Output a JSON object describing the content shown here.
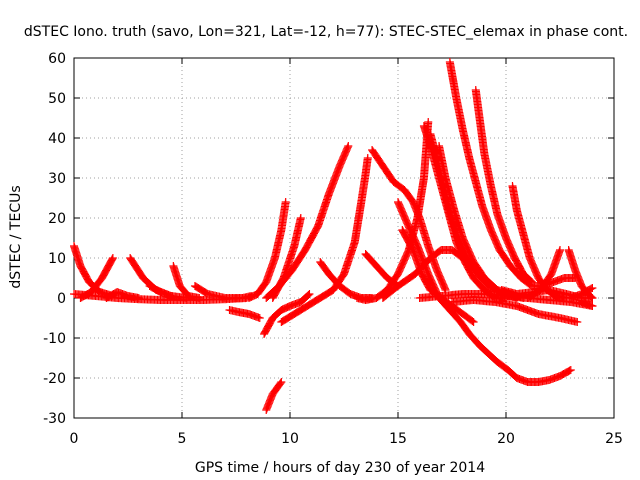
{
  "chart_data": {
    "type": "scatter",
    "title": "dSTEC Iono. truth (savo, Lon=321, Lat=-12, h=77): STEC-STEC_elemax in phase cont.",
    "xlabel": "GPS time / hours of day 230 of year 2014",
    "ylabel": "dSTEC  / TECUs",
    "xlim": [
      0,
      25
    ],
    "ylim": [
      -30,
      60
    ],
    "xticks": [
      "0",
      "5",
      "10",
      "15",
      "20",
      "25"
    ],
    "yticks": [
      "-30",
      "-20",
      "-10",
      "0",
      "10",
      "20",
      "30",
      "40",
      "50",
      "60"
    ],
    "grid": true,
    "marker": "+",
    "color": "#ff0000",
    "series": [
      {
        "points": [
          [
            0.0,
            13
          ],
          [
            0.3,
            8
          ],
          [
            0.7,
            4
          ],
          [
            1.2,
            1.5
          ],
          [
            1.8,
            0.5
          ]
        ]
      },
      {
        "points": [
          [
            0.0,
            1
          ],
          [
            1.0,
            0.5
          ],
          [
            2.0,
            0
          ],
          [
            3.0,
            -0.3
          ],
          [
            4.0,
            -0.5
          ],
          [
            5.0,
            -0.5
          ],
          [
            6.0,
            -0.5
          ],
          [
            7.0,
            -0.3
          ],
          [
            8.0,
            0
          ]
        ]
      },
      {
        "points": [
          [
            0.3,
            0
          ],
          [
            0.8,
            1.5
          ],
          [
            1.3,
            5
          ],
          [
            1.8,
            10
          ]
        ]
      },
      {
        "points": [
          [
            1.5,
            0
          ],
          [
            2.0,
            1.5
          ],
          [
            2.5,
            0.5
          ],
          [
            3.0,
            0
          ]
        ]
      },
      {
        "points": [
          [
            2.6,
            10
          ],
          [
            3.2,
            5
          ],
          [
            3.8,
            2
          ],
          [
            4.5,
            0.5
          ],
          [
            5.2,
            0
          ]
        ]
      },
      {
        "points": [
          [
            3.5,
            3
          ],
          [
            4.0,
            1.5
          ],
          [
            4.5,
            0.5
          ]
        ]
      },
      {
        "points": [
          [
            4.6,
            8
          ],
          [
            4.9,
            3
          ],
          [
            5.3,
            0.5
          ],
          [
            5.8,
            0
          ]
        ]
      },
      {
        "points": [
          [
            5.6,
            3
          ],
          [
            6.2,
            1
          ],
          [
            7.0,
            0
          ],
          [
            7.8,
            0
          ],
          [
            8.2,
            0.5
          ]
        ]
      },
      {
        "points": [
          [
            7.2,
            -3
          ],
          [
            7.6,
            -3.5
          ],
          [
            8.1,
            -4
          ],
          [
            8.6,
            -5
          ]
        ]
      },
      {
        "points": [
          [
            8.1,
            0
          ],
          [
            8.5,
            1
          ],
          [
            8.9,
            4
          ],
          [
            9.3,
            10
          ],
          [
            9.6,
            17
          ],
          [
            9.8,
            24
          ]
        ]
      },
      {
        "points": [
          [
            8.8,
            -9
          ],
          [
            9.2,
            -5
          ],
          [
            9.6,
            -3
          ],
          [
            10.0,
            -2
          ],
          [
            10.5,
            -1
          ],
          [
            10.9,
            1
          ]
        ]
      },
      {
        "points": [
          [
            9.2,
            0
          ],
          [
            9.7,
            5
          ],
          [
            10.2,
            13
          ],
          [
            10.5,
            20
          ]
        ]
      },
      {
        "points": [
          [
            9.6,
            -6
          ],
          [
            10.2,
            -4
          ],
          [
            10.8,
            -2
          ],
          [
            11.4,
            0
          ],
          [
            12.0,
            2
          ],
          [
            12.5,
            6
          ],
          [
            13.0,
            14
          ],
          [
            13.3,
            24
          ],
          [
            13.5,
            31
          ],
          [
            13.6,
            35
          ]
        ]
      },
      {
        "points": [
          [
            8.9,
            0
          ],
          [
            9.5,
            3
          ],
          [
            10.1,
            7
          ],
          [
            10.7,
            12
          ],
          [
            11.3,
            18
          ],
          [
            11.8,
            26
          ],
          [
            12.3,
            33
          ],
          [
            12.7,
            38
          ]
        ]
      },
      {
        "points": [
          [
            8.9,
            -28
          ],
          [
            9.2,
            -24
          ],
          [
            9.6,
            -21
          ]
        ]
      },
      {
        "points": [
          [
            11.4,
            9
          ],
          [
            11.8,
            6
          ],
          [
            12.3,
            3
          ],
          [
            12.8,
            1
          ],
          [
            13.3,
            0
          ],
          [
            13.8,
            0
          ]
        ]
      },
      {
        "points": [
          [
            13.1,
            0
          ],
          [
            13.5,
            -0.5
          ],
          [
            14.0,
            0
          ],
          [
            14.5,
            2
          ],
          [
            15.0,
            6
          ],
          [
            15.5,
            12
          ],
          [
            15.9,
            20
          ],
          [
            16.2,
            30
          ],
          [
            16.4,
            44
          ]
        ]
      },
      {
        "points": [
          [
            13.8,
            37
          ],
          [
            14.3,
            33
          ],
          [
            14.8,
            29
          ],
          [
            15.3,
            27
          ],
          [
            15.7,
            24
          ],
          [
            16.0,
            20
          ],
          [
            16.4,
            13
          ],
          [
            16.8,
            7
          ],
          [
            17.2,
            2
          ]
        ]
      },
      {
        "points": [
          [
            13.5,
            11
          ],
          [
            14.0,
            8
          ],
          [
            14.5,
            5
          ],
          [
            15.0,
            3
          ]
        ]
      },
      {
        "points": [
          [
            15.0,
            24
          ],
          [
            15.4,
            19
          ],
          [
            15.9,
            13
          ],
          [
            16.4,
            6
          ],
          [
            16.9,
            0
          ],
          [
            17.4,
            -3
          ],
          [
            17.9,
            -6
          ],
          [
            18.3,
            -9
          ],
          [
            18.8,
            -12
          ],
          [
            19.2,
            -14
          ],
          [
            19.6,
            -16
          ],
          [
            20.1,
            -18
          ],
          [
            20.5,
            -20
          ],
          [
            21.0,
            -21
          ],
          [
            21.5,
            -21
          ],
          [
            22.0,
            -20.5
          ],
          [
            22.5,
            -19.5
          ],
          [
            23.0,
            -18
          ]
        ]
      },
      {
        "points": [
          [
            15.2,
            17
          ],
          [
            15.7,
            12
          ],
          [
            16.1,
            6
          ],
          [
            16.5,
            2
          ],
          [
            17.0,
            0
          ],
          [
            17.5,
            -2
          ],
          [
            18.0,
            -4
          ],
          [
            18.5,
            -6
          ]
        ]
      },
      {
        "points": [
          [
            14.3,
            0
          ],
          [
            15.0,
            3
          ],
          [
            15.8,
            6
          ],
          [
            16.5,
            10
          ],
          [
            17.0,
            12
          ],
          [
            17.5,
            12
          ],
          [
            18.0,
            10
          ],
          [
            18.5,
            8
          ]
        ]
      },
      {
        "points": [
          [
            16.2,
            43
          ],
          [
            16.5,
            38
          ],
          [
            16.8,
            32
          ],
          [
            17.1,
            26
          ],
          [
            17.4,
            20
          ],
          [
            17.7,
            14
          ],
          [
            18.1,
            9
          ],
          [
            18.5,
            5
          ],
          [
            19.0,
            2
          ],
          [
            19.5,
            0
          ],
          [
            20.0,
            0
          ]
        ]
      },
      {
        "points": [
          [
            16.5,
            41
          ],
          [
            16.8,
            35
          ],
          [
            17.1,
            28
          ],
          [
            17.4,
            21
          ],
          [
            17.8,
            15
          ],
          [
            18.2,
            10
          ],
          [
            18.7,
            6
          ],
          [
            19.2,
            3
          ],
          [
            19.8,
            1
          ],
          [
            20.5,
            0
          ]
        ]
      },
      {
        "points": [
          [
            16.9,
            38
          ],
          [
            17.2,
            30
          ],
          [
            17.6,
            22
          ],
          [
            18.0,
            15
          ],
          [
            18.5,
            9
          ],
          [
            19.0,
            5
          ],
          [
            19.6,
            2
          ],
          [
            20.2,
            1
          ],
          [
            20.8,
            0
          ]
        ]
      },
      {
        "points": [
          [
            17.4,
            59
          ],
          [
            17.7,
            50
          ],
          [
            18.0,
            42
          ],
          [
            18.3,
            35
          ],
          [
            18.6,
            29
          ],
          [
            18.9,
            23
          ],
          [
            19.3,
            17
          ],
          [
            19.7,
            12
          ],
          [
            20.2,
            8
          ],
          [
            20.7,
            5
          ],
          [
            21.2,
            3
          ],
          [
            21.7,
            3
          ],
          [
            22.2,
            4
          ],
          [
            22.7,
            5
          ],
          [
            23.2,
            5
          ]
        ]
      },
      {
        "points": [
          [
            18.6,
            52
          ],
          [
            18.8,
            44
          ],
          [
            19.0,
            36
          ],
          [
            19.3,
            28
          ],
          [
            19.6,
            21
          ],
          [
            20.0,
            15
          ],
          [
            20.4,
            10
          ],
          [
            20.8,
            6
          ],
          [
            21.2,
            4
          ]
        ]
      },
      {
        "points": [
          [
            16.0,
            0
          ],
          [
            17.0,
            0.5
          ],
          [
            18.0,
            1
          ],
          [
            19.0,
            1
          ],
          [
            20.0,
            0.5
          ],
          [
            21.0,
            0
          ],
          [
            22.0,
            -0.5
          ],
          [
            23.0,
            -1
          ],
          [
            24.0,
            -2
          ]
        ]
      },
      {
        "points": [
          [
            17.5,
            -1
          ],
          [
            18.5,
            -0.5
          ],
          [
            19.5,
            -1
          ],
          [
            20.5,
            -2
          ],
          [
            21.5,
            -4
          ],
          [
            22.5,
            -5
          ],
          [
            23.3,
            -6
          ]
        ]
      },
      {
        "points": [
          [
            20.3,
            28
          ],
          [
            20.5,
            22
          ],
          [
            20.8,
            16
          ],
          [
            21.1,
            10
          ],
          [
            21.5,
            5
          ],
          [
            21.9,
            2
          ],
          [
            22.3,
            0.5
          ],
          [
            22.8,
            0
          ]
        ]
      },
      {
        "points": [
          [
            21.0,
            0
          ],
          [
            21.6,
            2
          ],
          [
            22.1,
            6
          ],
          [
            22.5,
            12
          ]
        ]
      },
      {
        "points": [
          [
            19.8,
            2
          ],
          [
            20.5,
            1
          ],
          [
            21.3,
            1.5
          ],
          [
            22.0,
            2
          ],
          [
            22.8,
            1
          ],
          [
            23.5,
            0
          ],
          [
            24.0,
            0
          ]
        ]
      },
      {
        "points": [
          [
            22.9,
            12
          ],
          [
            23.2,
            7
          ],
          [
            23.5,
            3
          ],
          [
            23.8,
            1
          ],
          [
            24.0,
            0
          ]
        ]
      },
      {
        "points": [
          [
            23.0,
            0
          ],
          [
            23.5,
            1
          ],
          [
            24.0,
            2.5
          ]
        ]
      },
      {
        "points": [
          [
            23.5,
            -1
          ],
          [
            24.0,
            -2
          ]
        ]
      }
    ]
  }
}
